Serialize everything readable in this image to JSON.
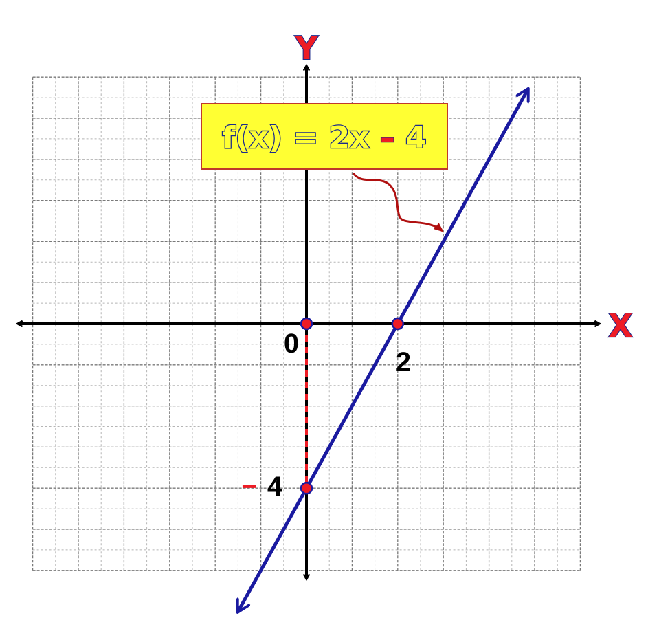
{
  "axes": {
    "x_title": "X",
    "y_title": "Y",
    "origin_label": "0",
    "x_tick_label": "2",
    "y_tick_number": "4",
    "y_tick_sign": "−",
    "x_range": [
      -6,
      6
    ],
    "y_range": [
      -6,
      6
    ]
  },
  "equation": {
    "lhs": "f(x) = 2x ",
    "minus": "–",
    "rhs": " 4"
  },
  "colors": {
    "line": "#1a1aa0",
    "points": "#ee1c25",
    "arrow": "#b01010",
    "box_fill": "#ffff33",
    "box_border": "#c0392b",
    "grid": "#888888",
    "axis": "#000000"
  },
  "chart_data": {
    "type": "line",
    "grid": true,
    "function": "f(x) = 2x - 4",
    "slope": 2,
    "intercept": -4,
    "xlim": [
      -6,
      6
    ],
    "ylim": [
      -6,
      6
    ],
    "points": [
      {
        "x": 0,
        "y": 0
      },
      {
        "x": 2,
        "y": 0
      },
      {
        "x": 0,
        "y": -4
      }
    ]
  }
}
